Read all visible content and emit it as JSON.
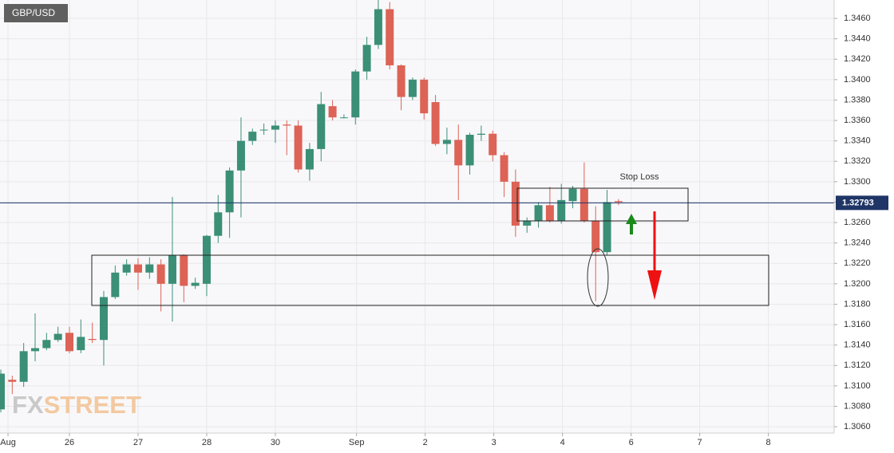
{
  "chart_data": {
    "type": "candlestick",
    "title": "GBP/USD",
    "annotation": "Stop Loss",
    "watermark": "FXSTREET",
    "up_color": "#3b8f77",
    "down_color": "#dc6356",
    "grid": true,
    "last_price": 1.32793,
    "x": [
      0,
      1,
      2,
      3,
      4,
      5,
      6,
      7,
      8,
      9,
      10,
      11,
      12,
      13,
      14,
      15,
      16,
      17,
      18,
      19,
      20,
      21,
      22,
      23,
      24,
      25,
      26,
      27,
      28,
      29,
      30,
      31,
      32,
      33,
      34,
      35,
      36,
      37,
      38,
      39,
      40,
      41,
      42,
      43,
      44,
      45,
      46,
      47,
      48,
      49,
      50,
      51,
      52,
      53,
      54
    ],
    "open": [
      1.3077,
      1.3106,
      1.3104,
      1.3134,
      1.3137,
      1.3145,
      1.3152,
      1.3135,
      1.3146,
      1.3145,
      1.3187,
      1.3211,
      1.3219,
      1.3211,
      1.3219,
      1.32,
      1.3228,
      1.3198,
      1.32,
      1.3247,
      1.327,
      1.3311,
      1.334,
      1.3351,
      1.3351,
      1.3356,
      1.3355,
      1.3312,
      1.3332,
      1.3374,
      1.3363,
      1.3363,
      1.3408,
      1.3434,
      1.3469,
      1.3414,
      1.3383,
      1.34,
      1.3378,
      1.3337,
      1.3341,
      1.3316,
      1.3346,
      1.3347,
      1.3326,
      1.33,
      1.3257,
      1.3262,
      1.3277,
      1.3262,
      1.3281,
      1.3293,
      1.3262,
      1.3231,
      1.3281
    ],
    "high": [
      1.3116,
      1.311,
      1.3142,
      1.3171,
      1.3152,
      1.3158,
      1.3158,
      1.3165,
      1.3162,
      1.3193,
      1.3218,
      1.3224,
      1.3225,
      1.3226,
      1.3224,
      1.3285,
      1.3229,
      1.3206,
      1.3248,
      1.3287,
      1.3314,
      1.3363,
      1.3352,
      1.3357,
      1.336,
      1.336,
      1.336,
      1.3338,
      1.3388,
      1.338,
      1.3366,
      1.341,
      1.3442,
      1.3478,
      1.3476,
      1.3415,
      1.3402,
      1.3402,
      1.3385,
      1.3353,
      1.3356,
      1.3348,
      1.3355,
      1.335,
      1.3329,
      1.3312,
      1.3265,
      1.328,
      1.3295,
      1.3298,
      1.3296,
      1.3319,
      1.3276,
      1.3292,
      1.3283
    ],
    "low": [
      1.3074,
      1.3092,
      1.3099,
      1.3124,
      1.3135,
      1.3143,
      1.3132,
      1.3132,
      1.3142,
      1.312,
      1.3185,
      1.3208,
      1.3194,
      1.3205,
      1.3173,
      1.3163,
      1.3182,
      1.3195,
      1.3188,
      1.324,
      1.3245,
      1.3265,
      1.3336,
      1.3346,
      1.3338,
      1.3326,
      1.3309,
      1.3301,
      1.332,
      1.336,
      1.3362,
      1.3356,
      1.34,
      1.343,
      1.341,
      1.337,
      1.338,
      1.3361,
      1.3335,
      1.3327,
      1.3282,
      1.3307,
      1.334,
      1.332,
      1.3285,
      1.3246,
      1.325,
      1.3255,
      1.326,
      1.3259,
      1.3274,
      1.326,
      1.3183,
      1.3228,
      1.3277
    ],
    "close": [
      1.3112,
      1.3104,
      1.3134,
      1.3137,
      1.3145,
      1.3151,
      1.3134,
      1.3148,
      1.3145,
      1.3187,
      1.3211,
      1.3219,
      1.3211,
      1.3219,
      1.32,
      1.3228,
      1.3198,
      1.3201,
      1.3247,
      1.327,
      1.3311,
      1.334,
      1.3349,
      1.3351,
      1.3355,
      1.3355,
      1.3312,
      1.3332,
      1.3376,
      1.3363,
      1.3363,
      1.3408,
      1.3434,
      1.3469,
      1.3414,
      1.3383,
      1.34,
      1.3367,
      1.3337,
      1.3341,
      1.3316,
      1.3346,
      1.3347,
      1.3326,
      1.33,
      1.3257,
      1.3262,
      1.3277,
      1.3262,
      1.3282,
      1.3293,
      1.3262,
      1.3231,
      1.328,
      1.328
    ],
    "xlim": [
      -0.07,
      72.85
    ],
    "ylim": [
      1.30538,
      1.3478
    ],
    "xticks": [
      {
        "value": 0.63,
        "label": "Aug"
      },
      {
        "value": 6.0,
        "label": "26"
      },
      {
        "value": 12.0,
        "label": "27"
      },
      {
        "value": 18.0,
        "label": "28"
      },
      {
        "value": 24.0,
        "label": "30"
      },
      {
        "value": 31.1,
        "label": "Sep"
      },
      {
        "value": 37.1,
        "label": "2"
      },
      {
        "value": 43.1,
        "label": "3"
      },
      {
        "value": 49.1,
        "label": "4"
      },
      {
        "value": 55.1,
        "label": "6"
      },
      {
        "value": 61.1,
        "label": "7"
      },
      {
        "value": 67.1,
        "label": "8"
      }
    ],
    "yticks": [
      {
        "value": 1.306,
        "label": "1.3060"
      },
      {
        "value": 1.308,
        "label": "1.3080"
      },
      {
        "value": 1.31,
        "label": "1.3100"
      },
      {
        "value": 1.312,
        "label": "1.3120"
      },
      {
        "value": 1.314,
        "label": "1.3140"
      },
      {
        "value": 1.316,
        "label": "1.3160"
      },
      {
        "value": 1.318,
        "label": "1.3180"
      },
      {
        "value": 1.32,
        "label": "1.3200"
      },
      {
        "value": 1.322,
        "label": "1.3220"
      },
      {
        "value": 1.324,
        "label": "1.3240"
      },
      {
        "value": 1.326,
        "label": "1.3260"
      },
      {
        "value": 1.328,
        "label": "1.3280"
      },
      {
        "value": 1.33,
        "label": "1.3300"
      },
      {
        "value": 1.332,
        "label": "1.3320"
      },
      {
        "value": 1.334,
        "label": "1.3340"
      },
      {
        "value": 1.336,
        "label": "1.3360"
      },
      {
        "value": 1.338,
        "label": "1.3380"
      },
      {
        "value": 1.34,
        "label": "1.3400"
      },
      {
        "value": 1.342,
        "label": "1.3420"
      },
      {
        "value": 1.344,
        "label": "1.3440"
      },
      {
        "value": 1.346,
        "label": "1.3460"
      }
    ]
  }
}
